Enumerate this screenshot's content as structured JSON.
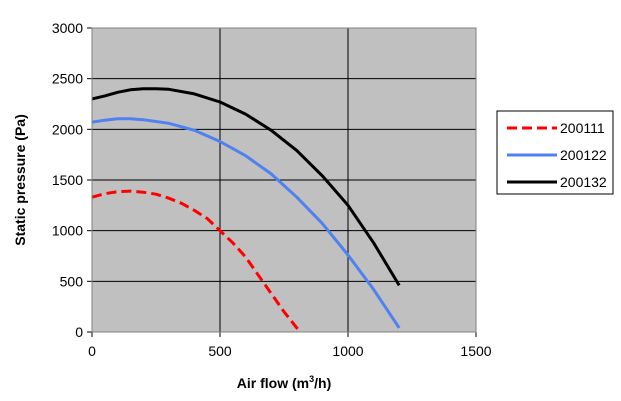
{
  "chart_data": {
    "type": "line",
    "title": "",
    "xlabel": "Air flow (m³/h)",
    "xlabel_parts": {
      "before": "Air flow (m",
      "sup": "3",
      "after": "/h)"
    },
    "ylabel": "Static pressure (Pa)",
    "xlim": [
      0,
      1500
    ],
    "ylim": [
      0,
      3000
    ],
    "x_ticks": [
      0,
      500,
      1000,
      1500
    ],
    "y_ticks": [
      0,
      500,
      1000,
      1500,
      2000,
      2500,
      3000
    ],
    "x_tick_labels": [
      "0",
      "500",
      "1000",
      "1500"
    ],
    "y_tick_labels": [
      "0",
      "500",
      "1000",
      "1500",
      "2000",
      "2500",
      "3000"
    ],
    "grid": true,
    "plot_background": "#c0c0c0",
    "legend_position": "right",
    "series": [
      {
        "name": "200111",
        "color": "#ff0000",
        "line_style": "dashed",
        "x": [
          0,
          50,
          100,
          150,
          200,
          250,
          300,
          350,
          400,
          450,
          500,
          550,
          600,
          650,
          700,
          750,
          800,
          815
        ],
        "y": [
          1330,
          1365,
          1385,
          1390,
          1380,
          1360,
          1320,
          1270,
          1200,
          1120,
          1000,
          880,
          740,
          560,
          380,
          200,
          40,
          0
        ]
      },
      {
        "name": "200122",
        "color": "#4f81f0",
        "line_style": "solid",
        "x": [
          0,
          50,
          100,
          150,
          200,
          300,
          400,
          500,
          600,
          700,
          800,
          900,
          1000,
          1100,
          1200
        ],
        "y": [
          2070,
          2090,
          2105,
          2105,
          2095,
          2060,
          1990,
          1880,
          1740,
          1560,
          1330,
          1070,
          760,
          420,
          40
        ]
      },
      {
        "name": "200132",
        "color": "#000000",
        "line_style": "solid",
        "x": [
          0,
          50,
          100,
          150,
          200,
          250,
          300,
          400,
          500,
          600,
          700,
          800,
          900,
          1000,
          1100,
          1200
        ],
        "y": [
          2300,
          2330,
          2365,
          2390,
          2400,
          2400,
          2395,
          2350,
          2270,
          2150,
          1990,
          1790,
          1540,
          1250,
          880,
          460
        ]
      }
    ]
  }
}
